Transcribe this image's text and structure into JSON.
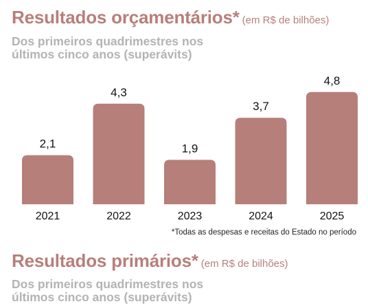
{
  "section1": {
    "title": "Resultados orçamentários*",
    "unit_note": "(em R$ de bilhões)",
    "subtitle_line1": "Dos primeiros quadrimestres nos",
    "subtitle_line2": "últimos cinco anos (superávits)",
    "footnote": "*Todas as despesas e receitas do Estado no período"
  },
  "section2": {
    "title": "Resultados primários*",
    "unit_note": "(em R$ de bilhões)",
    "subtitle_line1": "Dos primeiros quadrimestres nos",
    "subtitle_line2": "últimos cinco anos (superávits)"
  },
  "chart_data": {
    "type": "bar",
    "categories": [
      "2021",
      "2022",
      "2023",
      "2024",
      "2025"
    ],
    "values": [
      2.1,
      4.3,
      1.9,
      3.7,
      4.8
    ],
    "value_labels": [
      "2,1",
      "4,3",
      "1,9",
      "3,7",
      "4,8"
    ],
    "title": "Resultados orçamentários*",
    "ylim": [
      0,
      5
    ],
    "grid": false,
    "bar_color": "#b77f7a"
  }
}
